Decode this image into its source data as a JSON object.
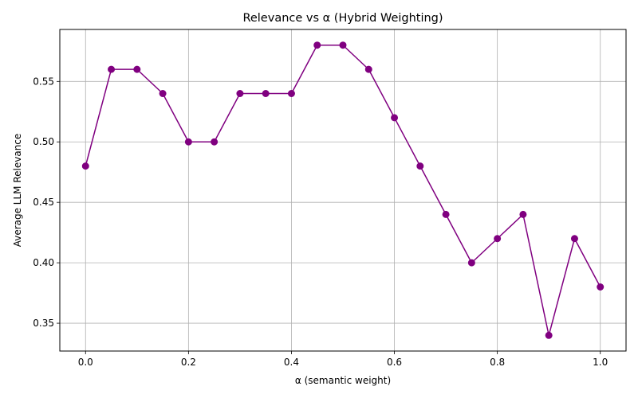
{
  "chart_data": {
    "type": "line",
    "title": "Relevance vs α (Hybrid Weighting)",
    "xlabel": "α (semantic weight)",
    "ylabel": "Average LLM Relevance",
    "xlim": [
      -0.05,
      1.05
    ],
    "ylim": [
      0.327,
      0.593
    ],
    "xticks": [
      0.0,
      0.2,
      0.4,
      0.6,
      0.8,
      1.0
    ],
    "xtick_labels": [
      "0.0",
      "0.2",
      "0.4",
      "0.6",
      "0.8",
      "1.0"
    ],
    "yticks": [
      0.35,
      0.4,
      0.45,
      0.5,
      0.55
    ],
    "ytick_labels": [
      "0.35",
      "0.40",
      "0.45",
      "0.50",
      "0.55"
    ],
    "grid": true,
    "legend": false,
    "series": [
      {
        "color": "#800080",
        "marker": "circle",
        "x": [
          0.0,
          0.05,
          0.1,
          0.15,
          0.2,
          0.25,
          0.3,
          0.35,
          0.4,
          0.45,
          0.5,
          0.55,
          0.6,
          0.65,
          0.7,
          0.75,
          0.8,
          0.85,
          0.9,
          0.95,
          1.0
        ],
        "y": [
          0.48,
          0.56,
          0.56,
          0.54,
          0.5,
          0.5,
          0.54,
          0.54,
          0.54,
          0.58,
          0.58,
          0.56,
          0.52,
          0.48,
          0.44,
          0.4,
          0.42,
          0.44,
          0.34,
          0.42,
          0.38
        ]
      }
    ]
  }
}
